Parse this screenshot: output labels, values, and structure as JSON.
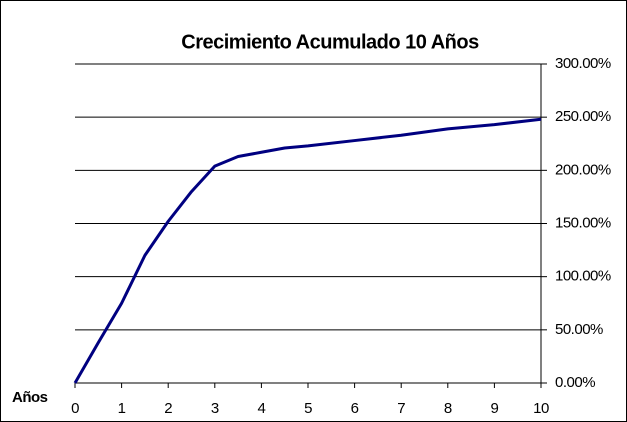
{
  "chart_data": {
    "type": "line",
    "title": "Crecimiento Acumulado 10 Años",
    "xlabel": "Años",
    "x": [
      0,
      0.5,
      1,
      1.5,
      2,
      2.5,
      3,
      3.5,
      4,
      4.5,
      5,
      6,
      7,
      8,
      9,
      10
    ],
    "series": [
      {
        "name": "Crecimiento",
        "color": "#000080",
        "values": [
          0,
          38,
          75,
          120,
          152,
          180,
          204,
          213,
          217,
          221,
          223,
          228,
          233,
          239,
          243,
          248
        ]
      }
    ],
    "xlim": [
      0,
      10
    ],
    "xticks": [
      0,
      1,
      2,
      3,
      4,
      5,
      6,
      7,
      8,
      9,
      10
    ],
    "ylim": [
      0,
      300
    ],
    "yticks": [
      {
        "value": 0,
        "label": "0.00%"
      },
      {
        "value": 50,
        "label": "50.00%"
      },
      {
        "value": 100,
        "label": "100.00%"
      },
      {
        "value": 150,
        "label": "150.00%"
      },
      {
        "value": 200,
        "label": "200.00%"
      },
      {
        "value": 250,
        "label": "250.00%"
      },
      {
        "value": 300,
        "label": "300.00%"
      }
    ],
    "grid": true,
    "y_axis_side": "right"
  }
}
